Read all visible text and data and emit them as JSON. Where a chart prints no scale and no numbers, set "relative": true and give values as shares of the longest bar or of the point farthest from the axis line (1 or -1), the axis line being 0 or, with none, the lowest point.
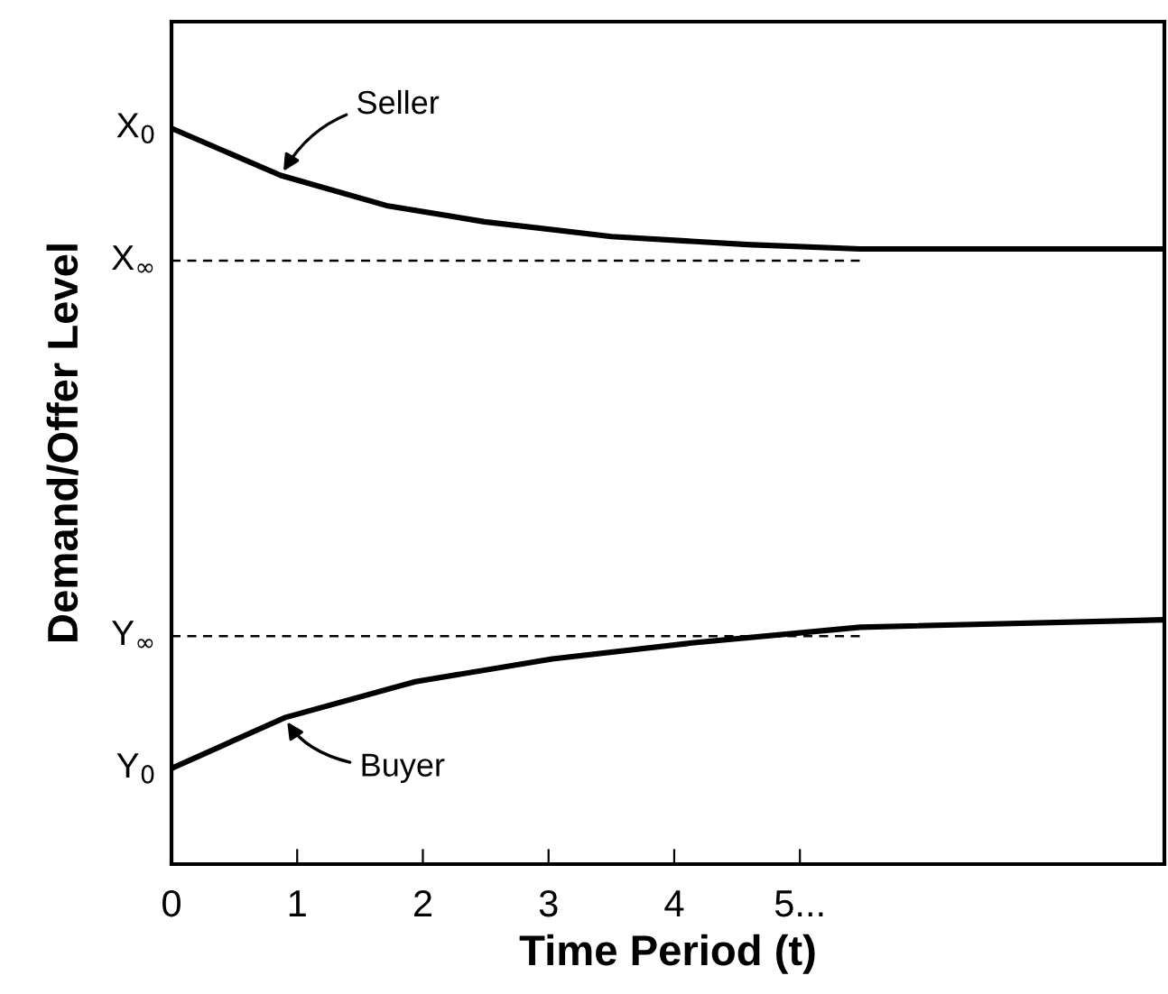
{
  "chart_data": {
    "type": "line",
    "relative": true,
    "xlabel": "Time Period (t)",
    "ylabel": "Demand/Offer Level",
    "xlim": [
      0,
      7.9
    ],
    "xticks": [
      0,
      1,
      2,
      3,
      4,
      {
        "value": 5,
        "label": "5..."
      }
    ],
    "series": [
      {
        "color": "#000000",
        "x": [
          0,
          0.87,
          1.71,
          2.49,
          3.5,
          4.58,
          5.48,
          7.9
        ],
        "values": [
          1,
          0.936,
          0.895,
          0.873,
          0.853,
          0.842,
          0.836,
          0.836
        ]
      },
      {
        "color": "#000000",
        "x": [
          0,
          0.9,
          1.94,
          3.03,
          4.16,
          5.48,
          7.9
        ],
        "values": [
          0.13,
          0.199,
          0.248,
          0.279,
          0.301,
          0.322,
          0.332
        ]
      }
    ],
    "marker": "none",
    "line_style": "solid",
    "ref_lines": [
      {
        "axis": "y",
        "value": 0.82,
        "label": "X$_{∞}$",
        "line_style": "dashed",
        "color": "#000000"
      },
      {
        "axis": "y",
        "value": 0.31,
        "label": "Y$_{∞}$",
        "line_style": "dashed",
        "color": "#000000"
      }
    ],
    "annotations": [
      {
        "text": "X$_{0}$",
        "x": 0,
        "y": 1
      },
      {
        "text": "Y$_{0}$",
        "x": 0,
        "y": 0.13
      },
      {
        "text": "Seller",
        "x": 0.87,
        "y": 0.936
      },
      {
        "text": "Buyer",
        "x": 0.9,
        "y": 0.199
      }
    ],
    "grid": false,
    "legend": false
  }
}
